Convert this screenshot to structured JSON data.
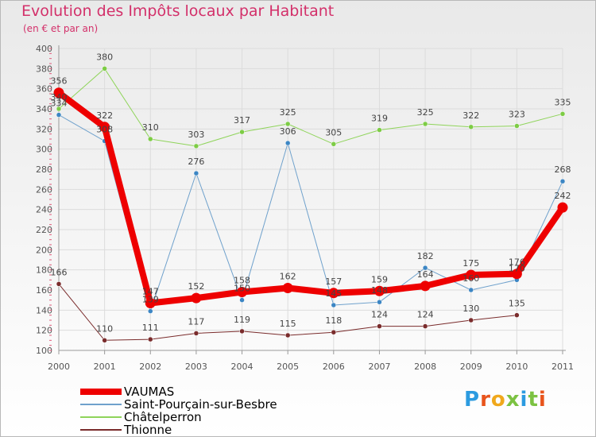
{
  "title": "Evolution des Impôts locaux par Habitant",
  "subtitle": "(en € et par an)",
  "brand": "Proxiti",
  "colors": {
    "title": "#d3306a",
    "axis": "#999999",
    "grid": "#dcdcdc",
    "tick_text": "#555555"
  },
  "chart_data": {
    "type": "line",
    "title": "Evolution des Impôts locaux par Habitant",
    "subtitle": "(en € et par an)",
    "xlabel": "",
    "ylabel": "",
    "ylim": [
      100,
      400
    ],
    "ytick_step": 20,
    "yticks": [
      "100",
      "120",
      "140",
      "160",
      "180",
      "200",
      "220",
      "240",
      "260",
      "280",
      "300",
      "320",
      "340",
      "360",
      "380",
      "400"
    ],
    "grid": true,
    "legend_position": "bottom-left",
    "categories": [
      "2000",
      "2001",
      "2002",
      "2003",
      "2004",
      "2005",
      "2006",
      "2007",
      "2008",
      "2009",
      "2010",
      "2011"
    ],
    "series": [
      {
        "name": "Châtelperron",
        "color": "#8fd45a",
        "dot": "#7dcc45",
        "width": 1,
        "values": [
          340,
          380,
          310,
          303,
          317,
          325,
          305,
          319,
          325,
          322,
          323,
          335
        ],
        "labels": [
          "340",
          "380",
          "310",
          "303",
          "317",
          "325",
          "305",
          "319",
          "325",
          "322",
          "323",
          "335"
        ]
      },
      {
        "name": "Saint-Pourçain-sur-Besbre",
        "color": "#6fa1cc",
        "dot": "#3c86c4",
        "width": 1,
        "values": [
          334,
          308,
          139,
          null,
          150,
          306,
          145,
          148,
          182,
          160,
          170,
          268
        ],
        "plot_values": [
          334,
          308,
          139,
          276,
          150,
          306,
          145,
          148,
          182,
          160,
          170,
          268
        ],
        "labels": [
          "334",
          "308",
          "139",
          "276",
          "150",
          "306",
          "145",
          "148",
          "182",
          "160",
          "170",
          "268"
        ]
      },
      {
        "name": "Thionne",
        "color": "#7a2c2c",
        "dot": "#7a2c2c",
        "width": 1,
        "values": [
          166,
          110,
          111,
          117,
          119,
          115,
          118,
          124,
          124,
          130,
          135,
          null
        ],
        "labels": [
          "166",
          "110",
          "111",
          "117",
          "119",
          "115",
          "118",
          "124",
          "124",
          "130",
          "135",
          ""
        ]
      },
      {
        "name": "VAUMAS",
        "color": "#ee0000",
        "dot": "#ee0000",
        "width": 8,
        "values": [
          356,
          322,
          147,
          152,
          158,
          162,
          157,
          159,
          164,
          175,
          176,
          242
        ],
        "labels": [
          "356",
          "322",
          "147",
          "152",
          "158",
          "162",
          "157",
          "159",
          "164",
          "175",
          "176",
          "242"
        ]
      }
    ]
  },
  "legend": [
    {
      "name": "VAUMAS",
      "color": "#ee0000",
      "width": 8
    },
    {
      "name": "Saint-Pourçain-sur-Besbre",
      "color": "#6fa1cc",
      "width": 2
    },
    {
      "name": "Châtelperron",
      "color": "#8fd45a",
      "width": 2
    },
    {
      "name": "Thionne",
      "color": "#7a2c2c",
      "width": 2
    }
  ]
}
